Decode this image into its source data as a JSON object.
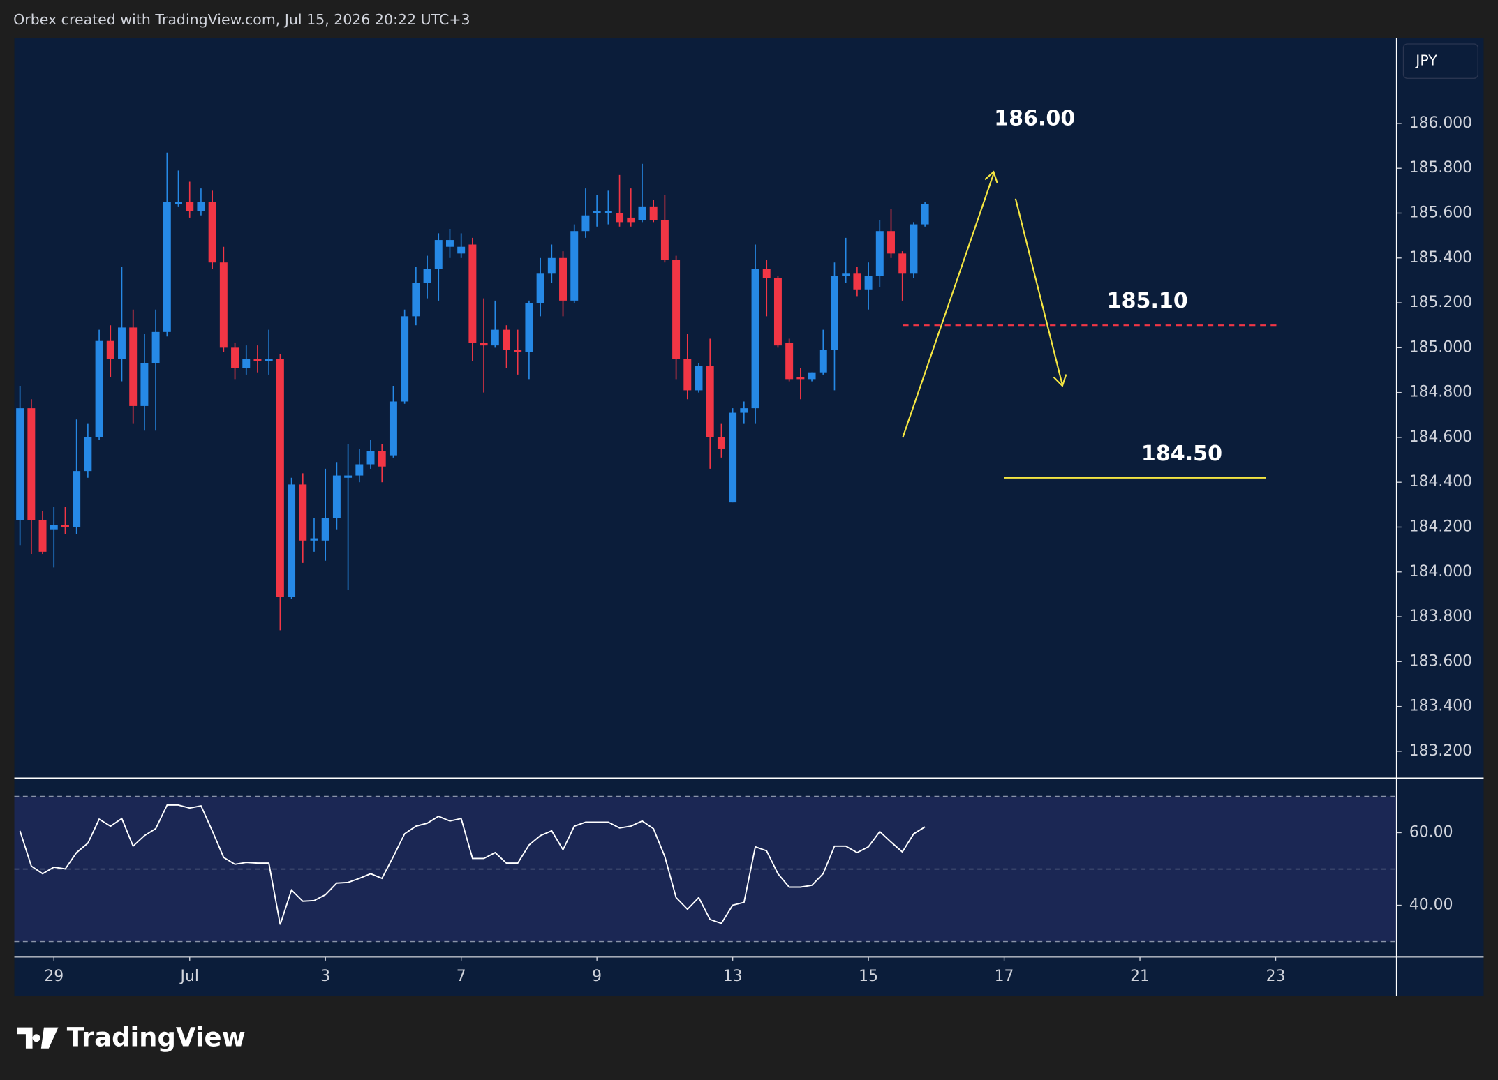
{
  "header": "Orbex created with TradingView.com, Jul 15, 2026 20:22 UTC+3",
  "currency": "JPY",
  "footer": "TradingView",
  "chart_data": [
    {
      "type": "candlestick",
      "up_color": "#2689e6",
      "down_color": "#f23645",
      "open": [
        184.23,
        184.73,
        184.23,
        184.19,
        184.21,
        184.2,
        184.45,
        184.6,
        185.03,
        184.95,
        185.09,
        184.74,
        184.93,
        185.07,
        185.64,
        185.65,
        185.61,
        185.65,
        185.38,
        185.0,
        184.91,
        184.95,
        184.94,
        184.95,
        183.89,
        184.39,
        184.14,
        184.14,
        184.24,
        184.42,
        184.43,
        184.48,
        184.54,
        184.52,
        184.76,
        185.14,
        185.29,
        185.35,
        185.45,
        185.42,
        185.46,
        185.02,
        185.01,
        185.08,
        184.99,
        184.98,
        185.2,
        185.33,
        185.4,
        185.21,
        185.52,
        185.6,
        185.6,
        185.6,
        185.58,
        185.57,
        185.63,
        185.57,
        185.39,
        184.95,
        184.81,
        184.92,
        184.6,
        184.31,
        184.71,
        184.73,
        185.35,
        185.31,
        185.02,
        184.87,
        184.86,
        184.89,
        184.99,
        185.32,
        185.33,
        185.26,
        185.32,
        185.52,
        185.42,
        185.33,
        185.55
      ],
      "high": [
        184.83,
        184.77,
        184.27,
        184.29,
        184.29,
        184.68,
        184.66,
        185.08,
        185.1,
        185.36,
        185.17,
        185.06,
        185.17,
        185.87,
        185.79,
        185.74,
        185.71,
        185.7,
        185.45,
        185.02,
        185.01,
        185.01,
        185.08,
        184.97,
        184.42,
        184.44,
        184.24,
        184.46,
        184.49,
        184.57,
        184.55,
        184.59,
        184.57,
        184.83,
        185.17,
        185.36,
        185.41,
        185.51,
        185.53,
        185.51,
        185.49,
        185.22,
        185.21,
        185.1,
        185.08,
        185.21,
        185.4,
        185.46,
        185.43,
        185.55,
        185.71,
        185.68,
        185.7,
        185.77,
        185.71,
        185.82,
        185.66,
        185.68,
        185.41,
        185.06,
        184.93,
        185.04,
        184.66,
        184.73,
        184.76,
        185.46,
        185.39,
        185.32,
        185.04,
        184.91,
        184.89,
        185.08,
        185.38,
        185.49,
        185.36,
        185.38,
        185.57,
        185.62,
        185.43,
        185.56,
        185.65
      ],
      "low": [
        184.12,
        184.08,
        184.08,
        184.02,
        184.17,
        184.17,
        184.42,
        184.59,
        184.87,
        184.85,
        184.66,
        184.63,
        184.63,
        185.05,
        185.63,
        185.58,
        185.59,
        185.35,
        184.98,
        184.86,
        184.88,
        184.89,
        184.88,
        183.74,
        183.88,
        184.04,
        184.09,
        184.05,
        184.19,
        183.92,
        184.4,
        184.46,
        184.4,
        184.51,
        184.75,
        185.1,
        185.22,
        185.21,
        185.4,
        185.4,
        184.94,
        184.8,
        185.0,
        184.91,
        184.88,
        184.86,
        185.14,
        185.29,
        185.14,
        185.2,
        185.49,
        185.54,
        185.55,
        185.54,
        185.54,
        185.56,
        185.56,
        185.38,
        184.86,
        184.77,
        184.8,
        184.46,
        184.51,
        184.31,
        184.66,
        184.66,
        185.14,
        185.0,
        184.85,
        184.77,
        184.85,
        184.88,
        184.81,
        185.29,
        185.23,
        185.17,
        185.27,
        185.4,
        185.21,
        185.31,
        185.54
      ],
      "close": [
        184.73,
        184.23,
        184.09,
        184.21,
        184.2,
        184.45,
        184.6,
        185.03,
        184.95,
        185.09,
        184.74,
        184.93,
        185.07,
        185.65,
        185.65,
        185.61,
        185.65,
        185.38,
        185.0,
        184.91,
        184.95,
        184.94,
        184.95,
        183.89,
        184.39,
        184.14,
        184.15,
        184.24,
        184.43,
        184.43,
        184.48,
        184.54,
        184.47,
        184.76,
        185.14,
        185.29,
        185.35,
        185.48,
        185.48,
        185.45,
        185.02,
        185.01,
        185.08,
        184.99,
        184.98,
        185.2,
        185.33,
        185.4,
        185.21,
        185.52,
        185.59,
        185.61,
        185.61,
        185.56,
        185.56,
        185.63,
        185.57,
        185.39,
        184.95,
        184.81,
        184.92,
        184.6,
        184.55,
        184.71,
        184.73,
        185.35,
        185.31,
        185.01,
        184.86,
        184.86,
        184.89,
        184.99,
        185.32,
        185.33,
        185.26,
        185.32,
        185.52,
        185.42,
        185.33,
        185.55,
        185.64
      ],
      "ylim": [
        183.08,
        186.38
      ],
      "yticks": [
        {
          "value": 186.0,
          "label": "186.000"
        },
        {
          "value": 185.8,
          "label": "185.800"
        },
        {
          "value": 185.6,
          "label": "185.600"
        },
        {
          "value": 185.4,
          "label": "185.400"
        },
        {
          "value": 185.2,
          "label": "185.200"
        },
        {
          "value": 185.0,
          "label": "185.000"
        },
        {
          "value": 184.8,
          "label": "184.800"
        },
        {
          "value": 184.6,
          "label": "184.600"
        },
        {
          "value": 184.4,
          "label": "184.400"
        },
        {
          "value": 184.2,
          "label": "184.200"
        },
        {
          "value": 184.0,
          "label": "184.000"
        },
        {
          "value": 183.8,
          "label": "183.800"
        },
        {
          "value": 183.6,
          "label": "183.600"
        },
        {
          "value": 183.4,
          "label": "183.400"
        },
        {
          "value": 183.2,
          "label": "183.200"
        }
      ],
      "xlim": [
        -0.5,
        121.7
      ],
      "xticks": [
        {
          "value": 3,
          "label": "29"
        },
        {
          "value": 15,
          "label": "Jul"
        },
        {
          "value": 27,
          "label": "3"
        },
        {
          "value": 39,
          "label": "7"
        },
        {
          "value": 51,
          "label": "9"
        },
        {
          "value": 63,
          "label": "13"
        },
        {
          "value": 75,
          "label": "15"
        },
        {
          "value": 87,
          "label": "17"
        },
        {
          "value": 99,
          "label": "21"
        },
        {
          "value": 111,
          "label": "23"
        }
      ],
      "annotations": [
        "186.00",
        "185.10",
        "184.50"
      ],
      "hlines": [
        {
          "value": 185.1,
          "color": "#f23645",
          "dashed": true
        },
        {
          "value": 184.42,
          "color": "#f5e642",
          "dashed": false
        }
      ]
    },
    {
      "type": "line",
      "color": "#ffffff",
      "values": [
        60.5,
        50.8,
        48.7,
        50.5,
        50.0,
        54.5,
        57.1,
        63.7,
        61.8,
        63.9,
        56.3,
        59.2,
        61.1,
        67.6,
        67.6,
        66.8,
        67.4,
        60.5,
        53.2,
        51.3,
        51.8,
        51.6,
        51.6,
        34.7,
        44.2,
        41.1,
        41.3,
        42.9,
        46.1,
        46.3,
        47.4,
        48.7,
        47.4,
        53.4,
        59.7,
        61.8,
        62.6,
        64.5,
        63.2,
        63.9,
        52.9,
        52.9,
        54.5,
        51.6,
        51.6,
        56.6,
        59.2,
        60.5,
        55.3,
        61.8,
        62.9,
        62.9,
        62.9,
        61.3,
        61.8,
        63.2,
        61.1,
        53.4,
        42.1,
        38.9,
        42.1,
        36.1,
        35.0,
        40.0,
        40.8,
        56.1,
        55.0,
        48.7,
        45.0,
        45.0,
        45.5,
        48.7,
        56.3,
        56.3,
        54.5,
        56.1,
        60.3,
        57.4,
        54.7,
        59.7,
        61.6
      ],
      "ylim": [
        25.8,
        75.0
      ],
      "yticks": [
        {
          "value": 60,
          "label": "60.00"
        },
        {
          "value": 40,
          "label": "40.00"
        }
      ],
      "levels": [
        70,
        50,
        30
      ]
    }
  ]
}
